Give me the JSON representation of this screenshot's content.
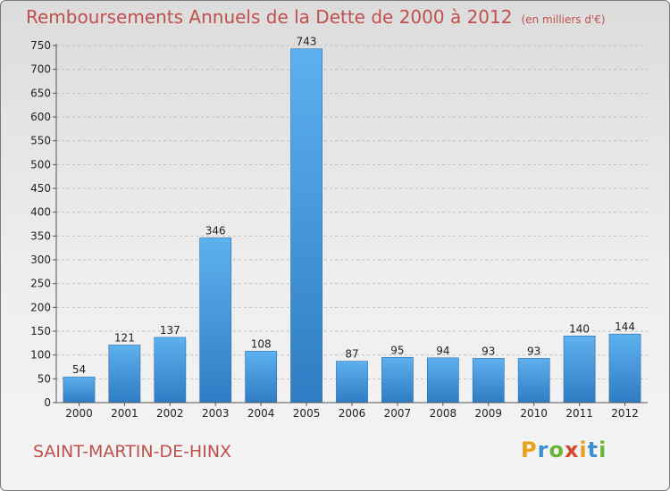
{
  "title": "Remboursements Annuels de la Dette de 2000 à 2012",
  "subtitle": "(en milliers d'€)",
  "commune": "SAINT-MARTIN-DE-HINX",
  "logo": {
    "letters": [
      "P",
      "r",
      "o",
      "x",
      "i",
      "t",
      "i"
    ],
    "colors": [
      "#e8a21a",
      "#3e8ed0",
      "#6bb536",
      "#d9462f",
      "#e8a21a",
      "#3e8ed0",
      "#6bb536"
    ]
  },
  "colors": {
    "bar": "#3a8fd4",
    "title": "#c0504d"
  },
  "chart_data": {
    "type": "bar",
    "categories": [
      "2000",
      "2001",
      "2002",
      "2003",
      "2004",
      "2005",
      "2006",
      "2007",
      "2008",
      "2009",
      "2010",
      "2011",
      "2012"
    ],
    "values": [
      54,
      121,
      137,
      346,
      108,
      743,
      87,
      95,
      94,
      93,
      93,
      140,
      144
    ],
    "title": "Remboursements Annuels de la Dette de 2000 à 2012",
    "subtitle": "(en milliers d'€)",
    "ylim": [
      0,
      750
    ],
    "yticks": [
      0,
      50,
      100,
      150,
      200,
      250,
      300,
      350,
      400,
      450,
      500,
      550,
      600,
      650,
      700,
      750
    ],
    "grid": true,
    "data_labels": true
  }
}
